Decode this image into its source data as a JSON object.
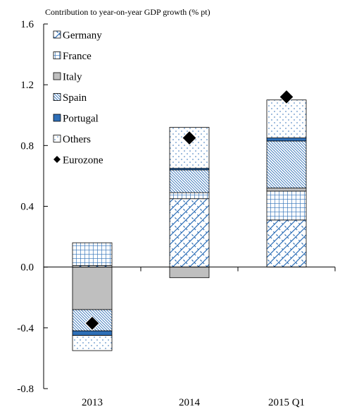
{
  "chart_data": {
    "type": "bar",
    "stacked": true,
    "ylabel": "Contribution to  year-on-year GDP growth (% pt)",
    "categories": [
      "2013",
      "2014",
      "2015 Q1"
    ],
    "ylim": [
      -0.8,
      1.6
    ],
    "yticks": [
      "1.6",
      "1.2",
      "0.8",
      "0.4",
      "0.0",
      "-0.4",
      "-0.8"
    ],
    "ytick_values": [
      1.6,
      1.2,
      0.8,
      0.4,
      0.0,
      -0.4,
      -0.8
    ],
    "grid": false,
    "legend_position": "top-left",
    "series": [
      {
        "name": "Germany",
        "pattern": "diagonal-cross",
        "values": [
          0.01,
          0.45,
          0.31
        ]
      },
      {
        "name": "France",
        "pattern": "grid",
        "values": [
          0.15,
          0.04,
          0.19
        ]
      },
      {
        "name": "Italy",
        "pattern": "solid-gray",
        "values": [
          -0.28,
          -0.07,
          0.02
        ]
      },
      {
        "name": "Spain",
        "pattern": "diagonal-lines",
        "values": [
          -0.14,
          0.15,
          0.31
        ]
      },
      {
        "name": "Portugal",
        "pattern": "blue-fill",
        "values": [
          -0.03,
          0.01,
          0.02
        ]
      },
      {
        "name": "Others",
        "pattern": "dots",
        "values": [
          -0.1,
          0.27,
          0.25
        ]
      }
    ],
    "line_series": {
      "name": "Eurozone",
      "marker": "diamond",
      "values": [
        -0.37,
        0.85,
        1.12
      ]
    },
    "colors": {
      "blue": "#2e6fb7",
      "italy_gray": "#bfbfbf",
      "axis": "#000000",
      "marker": "#000000"
    }
  }
}
